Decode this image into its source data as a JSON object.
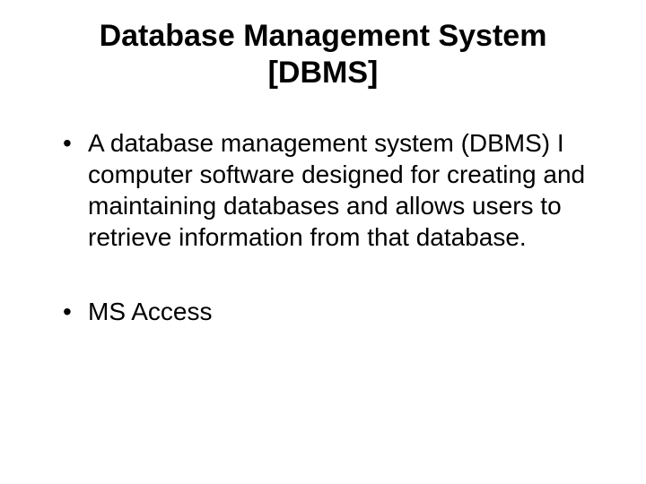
{
  "title": {
    "line1": "Database Management System",
    "line2": "[DBMS]",
    "fontsize": 34,
    "color": "#000000"
  },
  "bullets": {
    "fontsize": 28,
    "color": "#000000",
    "items": [
      "A database management system (DBMS) I computer software designed for creating and maintaining databases and allows users to retrieve information from that database.",
      "MS Access"
    ]
  },
  "background_color": "#ffffff"
}
